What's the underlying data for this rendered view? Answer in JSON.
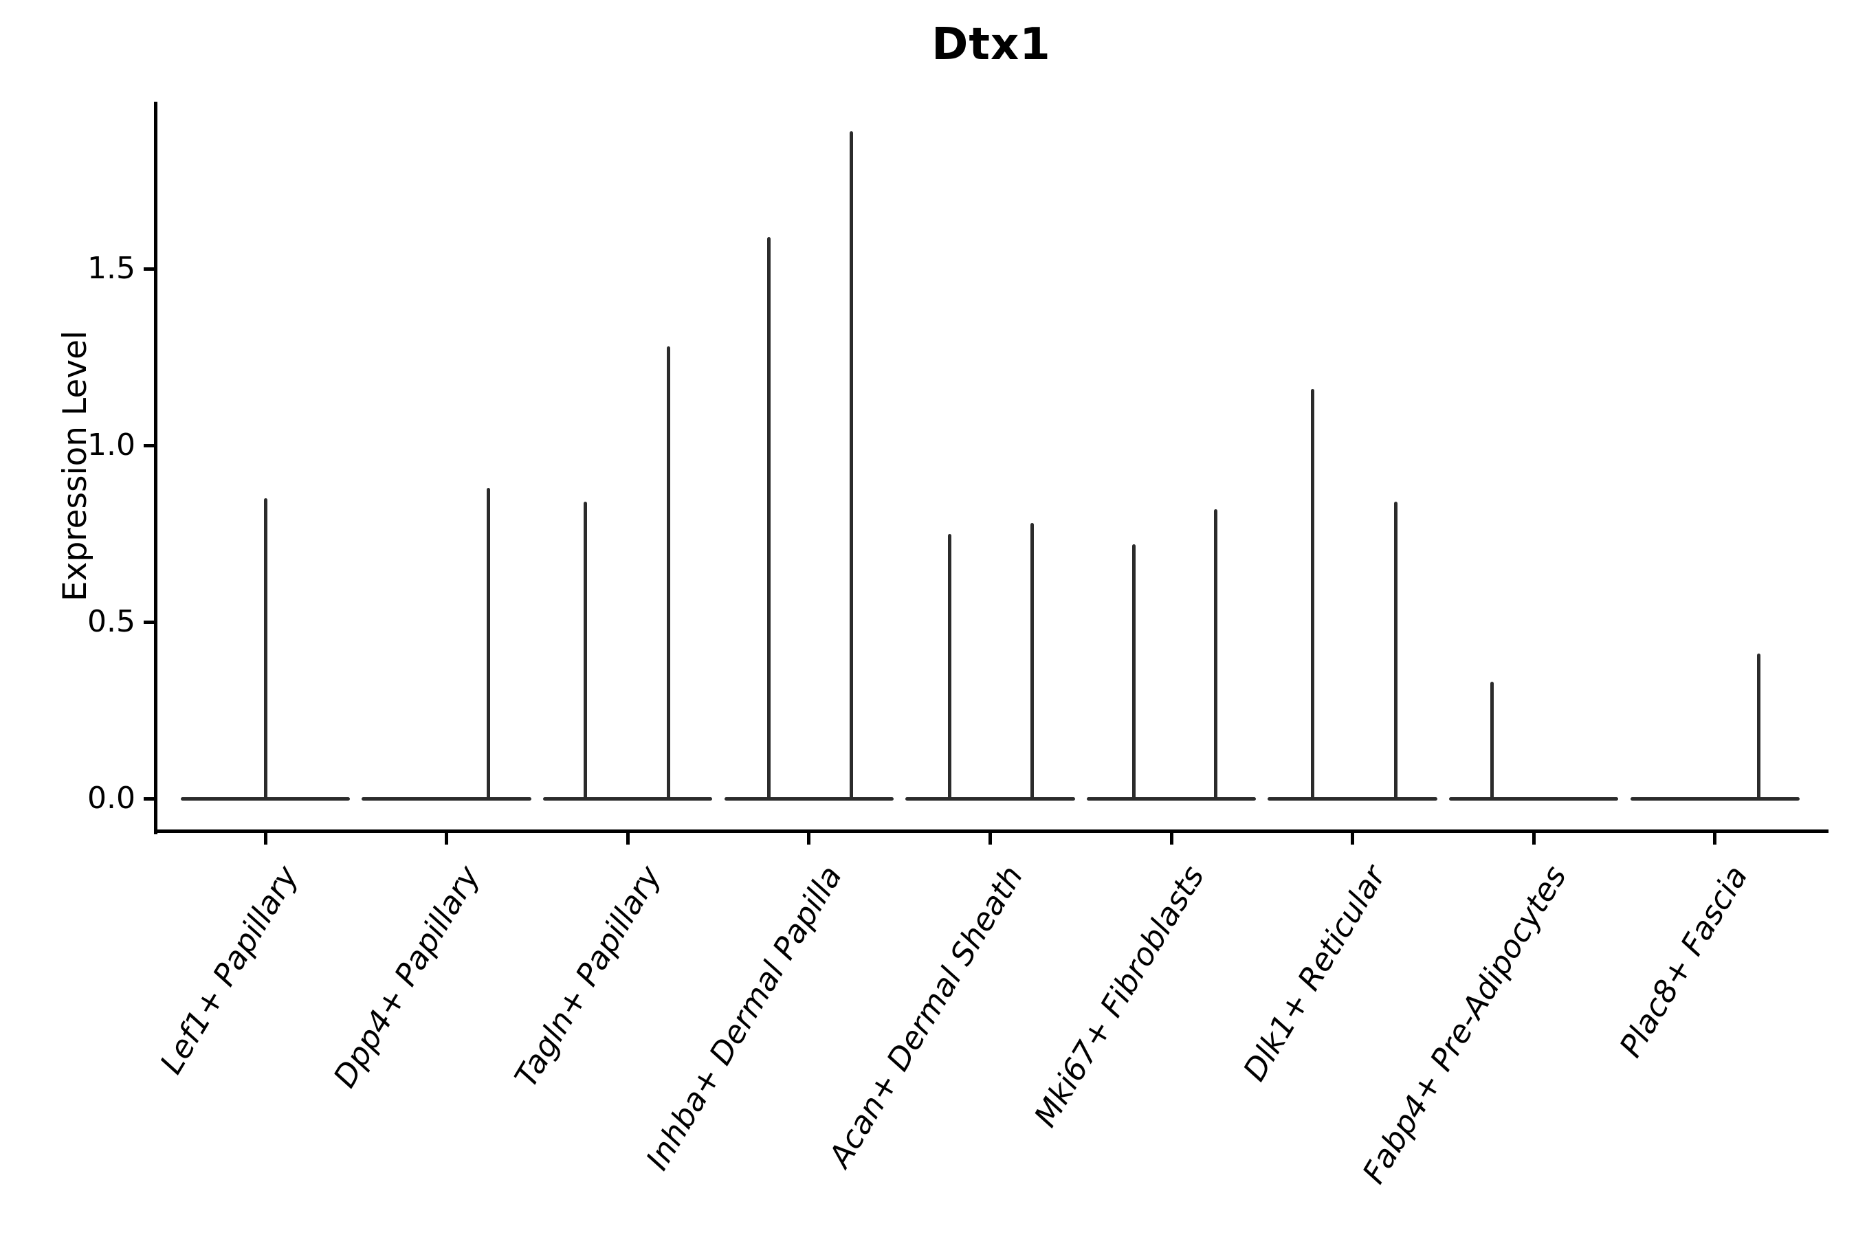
{
  "colors": {
    "background": "#ffffff",
    "axis": "#000000",
    "text": "#000000",
    "violin_stroke": "#2b2b2b"
  },
  "chart_data": {
    "type": "violin",
    "title": "Dtx1",
    "xlabel": "",
    "ylabel": "Expression Level",
    "ytick_labels": [
      "0.0",
      "0.5",
      "1.0",
      "1.5"
    ],
    "ytick_values": [
      0.0,
      0.5,
      1.0,
      1.5
    ],
    "ylim": [
      -0.09,
      1.97
    ],
    "grid": false,
    "legend": "none",
    "spines": [
      "left",
      "bottom"
    ],
    "categories": [
      "Lef1+ Papillary",
      "Dpp4+ Papillary",
      "Tagln+ Papillary",
      "Inhba+ Dermal Papilla",
      "Acan+ Dermal Sheath",
      "Mki67+ Fibroblasts",
      "Dlk1+ Reticular",
      "Fabp4+ Pre-Adipocytes",
      "Plac8+ Fascia"
    ],
    "violins": [
      {
        "category": "Lef1+ Papillary",
        "base_value": 0.0,
        "base_halfwidth": 0.46,
        "spikes": [
          {
            "offset": 0.0,
            "max": 0.85
          }
        ]
      },
      {
        "category": "Dpp4+ Papillary",
        "base_value": 0.0,
        "base_halfwidth": 0.46,
        "spikes": [
          {
            "offset": 0.23,
            "max": 0.88
          }
        ]
      },
      {
        "category": "Tagln+ Papillary",
        "base_value": 0.0,
        "base_halfwidth": 0.46,
        "spikes": [
          {
            "offset": -0.235,
            "max": 0.84
          },
          {
            "offset": 0.225,
            "max": 1.28
          }
        ]
      },
      {
        "category": "Inhba+ Dermal Papilla",
        "base_value": 0.0,
        "base_halfwidth": 0.46,
        "spikes": [
          {
            "offset": -0.22,
            "max": 1.59
          },
          {
            "offset": 0.235,
            "max": 1.89
          }
        ]
      },
      {
        "category": "Acan+ Dermal Sheath",
        "base_value": 0.0,
        "base_halfwidth": 0.46,
        "spikes": [
          {
            "offset": -0.225,
            "max": 0.75
          },
          {
            "offset": 0.23,
            "max": 0.78
          }
        ]
      },
      {
        "category": "Mki67+ Fibroblasts",
        "base_value": 0.0,
        "base_halfwidth": 0.46,
        "spikes": [
          {
            "offset": -0.205,
            "max": 0.72
          },
          {
            "offset": 0.245,
            "max": 0.82
          }
        ]
      },
      {
        "category": "Dlk1+ Reticular",
        "base_value": 0.0,
        "base_halfwidth": 0.46,
        "spikes": [
          {
            "offset": -0.22,
            "max": 1.16
          },
          {
            "offset": 0.24,
            "max": 0.84
          }
        ]
      },
      {
        "category": "Fabp4+ Pre-Adipocytes",
        "base_value": 0.0,
        "base_halfwidth": 0.46,
        "spikes": [
          {
            "offset": -0.23,
            "max": 0.33
          }
        ]
      },
      {
        "category": "Plac8+ Fascia",
        "base_value": 0.0,
        "base_halfwidth": 0.46,
        "spikes": [
          {
            "offset": 0.24,
            "max": 0.41
          }
        ]
      }
    ]
  }
}
